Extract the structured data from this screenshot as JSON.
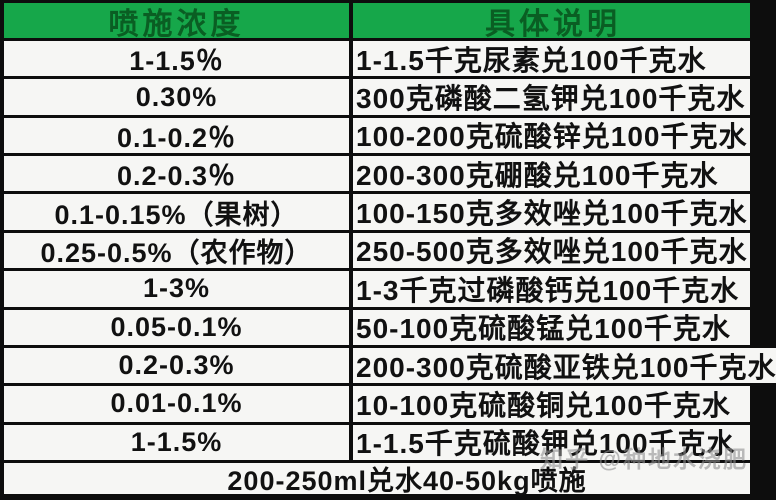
{
  "table": {
    "header": {
      "col1": "喷施浓度",
      "col2": "具体说明"
    },
    "rows": [
      {
        "concentration": "1-1.5％",
        "instruction": "1-1.5千克尿素兑100千克水"
      },
      {
        "concentration": "0.30%",
        "instruction": "300克磷酸二氢钾兑100千克水"
      },
      {
        "concentration": "0.1-0.2％",
        "instruction": "100-200克硫酸锌兑100千克水"
      },
      {
        "concentration": "0.2-0.3％",
        "instruction": "200-300克硼酸兑100千克水"
      },
      {
        "concentration": "0.1-0.15%（果树）",
        "instruction": "100-150克多效唑兑100千克水"
      },
      {
        "concentration": "0.25-0.5%（农作物）",
        "instruction": "250-500克多效唑兑100千克水"
      },
      {
        "concentration": "1-3%",
        "instruction": "1-3千克过磷酸钙兑100千克水"
      },
      {
        "concentration": "0.05-0.1%",
        "instruction": "50-100克硫酸锰兑100千克水"
      },
      {
        "concentration": "0.2-0.3%",
        "instruction": "200-300克硫酸亚铁兑100千克水"
      },
      {
        "concentration": "0.01-0.1%",
        "instruction": "10-100克硫酸铜兑100千克水"
      },
      {
        "concentration": "1-1.5%",
        "instruction": "1-1.5千克硫酸钾兑100千克水"
      }
    ],
    "footer": "200-250ml兑水40-50kg喷施"
  },
  "watermark": "知乎 @种地水浇肥",
  "colors": {
    "header_bg": "#16a74a",
    "header_text": "#0a5e23",
    "grid_border": "#0d0d0d",
    "row_bg": "#f6f6f4",
    "body_text": "#111111",
    "watermark_text": "#919191"
  }
}
